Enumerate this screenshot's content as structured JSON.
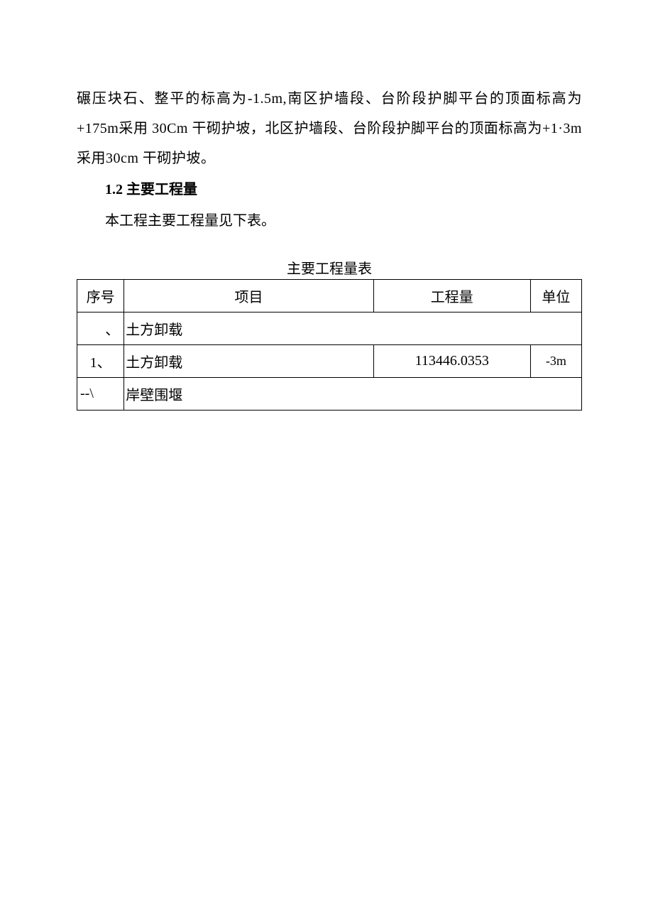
{
  "paragraph": {
    "line_all": "碾压块石、整平的标高为-1.5m,南区护墙段、台阶段护脚平台的顶面标高为+175m采用 30Cm 干砌护坡，北区护墙段、台阶段护脚平台的顶面标高为+1·3m 采用30cm 干砌护坡。"
  },
  "section": {
    "heading": "1.2  主要工程量",
    "intro": "本工程主要工程量见下表。"
  },
  "table": {
    "title": "主要工程量表",
    "headers": {
      "seq": "序号",
      "item": "项目",
      "qty": "工程量",
      "unit": "单位"
    },
    "rows": [
      {
        "seq": "、",
        "item": "土方卸载",
        "qty": "",
        "unit": "",
        "span": true
      },
      {
        "seq": "1、",
        "item": "土方卸载",
        "qty": "113446.0353",
        "unit": "-3m",
        "span": false
      },
      {
        "seq": "--\\",
        "item": "岸壁围堰",
        "qty": "",
        "unit": "",
        "span": true
      }
    ]
  },
  "style": {
    "font_size_body": 20,
    "font_size_unit": 18,
    "text_color": "#000000",
    "border_color": "#000000",
    "background_color": "#ffffff",
    "col_widths": {
      "seq": 66,
      "item": 350,
      "qty": 220,
      "unit": 72
    }
  }
}
